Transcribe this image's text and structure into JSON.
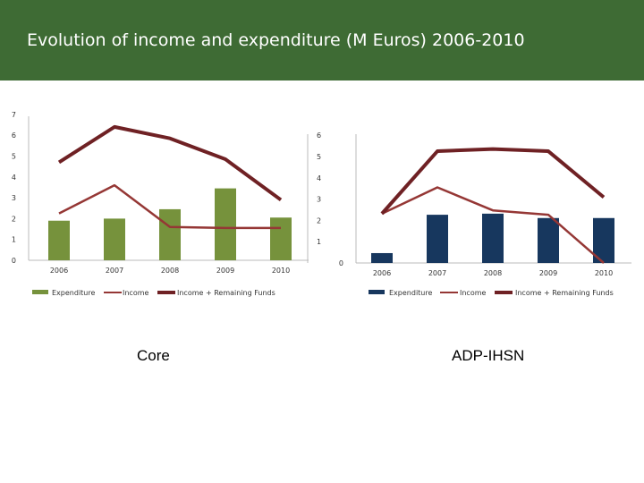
{
  "header": {
    "title": "Evolution of income and expenditure (M Euros) 2006-2010",
    "background_color": "#3e6b34"
  },
  "panels": {
    "core_label": "Core",
    "adp_label": "ADP-IHSN"
  },
  "chart_data": [
    {
      "type": "bar",
      "title": "Core",
      "categories": [
        "2006",
        "2007",
        "2008",
        "2009",
        "2010"
      ],
      "series": [
        {
          "name": "Expenditure",
          "kind": "bar",
          "color": "#76923c",
          "values": [
            1.9,
            2.0,
            2.45,
            3.45,
            2.05
          ]
        },
        {
          "name": "Income",
          "kind": "line",
          "color": "#953735",
          "values": [
            2.25,
            3.6,
            1.6,
            1.55,
            1.55
          ]
        },
        {
          "name": "Income + Remaining Funds",
          "kind": "line",
          "color": "#6f2124",
          "values": [
            4.7,
            6.4,
            5.85,
            4.85,
            2.9
          ]
        }
      ],
      "left_axis": {
        "min": 0,
        "max": 7,
        "ticks": [
          "0",
          "1",
          "2",
          "3",
          "4",
          "5",
          "6",
          "7"
        ]
      },
      "right_axis": {
        "min": 0,
        "max": 6,
        "ticks": [
          "1",
          "2",
          "3",
          "4",
          "5",
          "6"
        ]
      },
      "legend_position": "bottom",
      "grid": false
    },
    {
      "type": "bar",
      "title": "ADP-IHSN",
      "categories": [
        "2006",
        "2007",
        "2008",
        "2009",
        "2010"
      ],
      "series": [
        {
          "name": "Expenditure",
          "kind": "bar",
          "color": "#17375e",
          "values": [
            0.45,
            2.2,
            2.25,
            2.05,
            2.05
          ]
        },
        {
          "name": "Income",
          "kind": "line",
          "color": "#953735",
          "values": [
            2.25,
            3.45,
            2.4,
            2.2,
            0.0
          ]
        },
        {
          "name": "Income + Remaining Funds",
          "kind": "line",
          "color": "#6f2124",
          "values": [
            2.25,
            5.1,
            5.2,
            5.1,
            3.0
          ]
        }
      ],
      "left_axis": {
        "min": 0,
        "max": 6,
        "ticks": [
          "0"
        ]
      },
      "legend_position": "bottom",
      "grid": false
    }
  ]
}
